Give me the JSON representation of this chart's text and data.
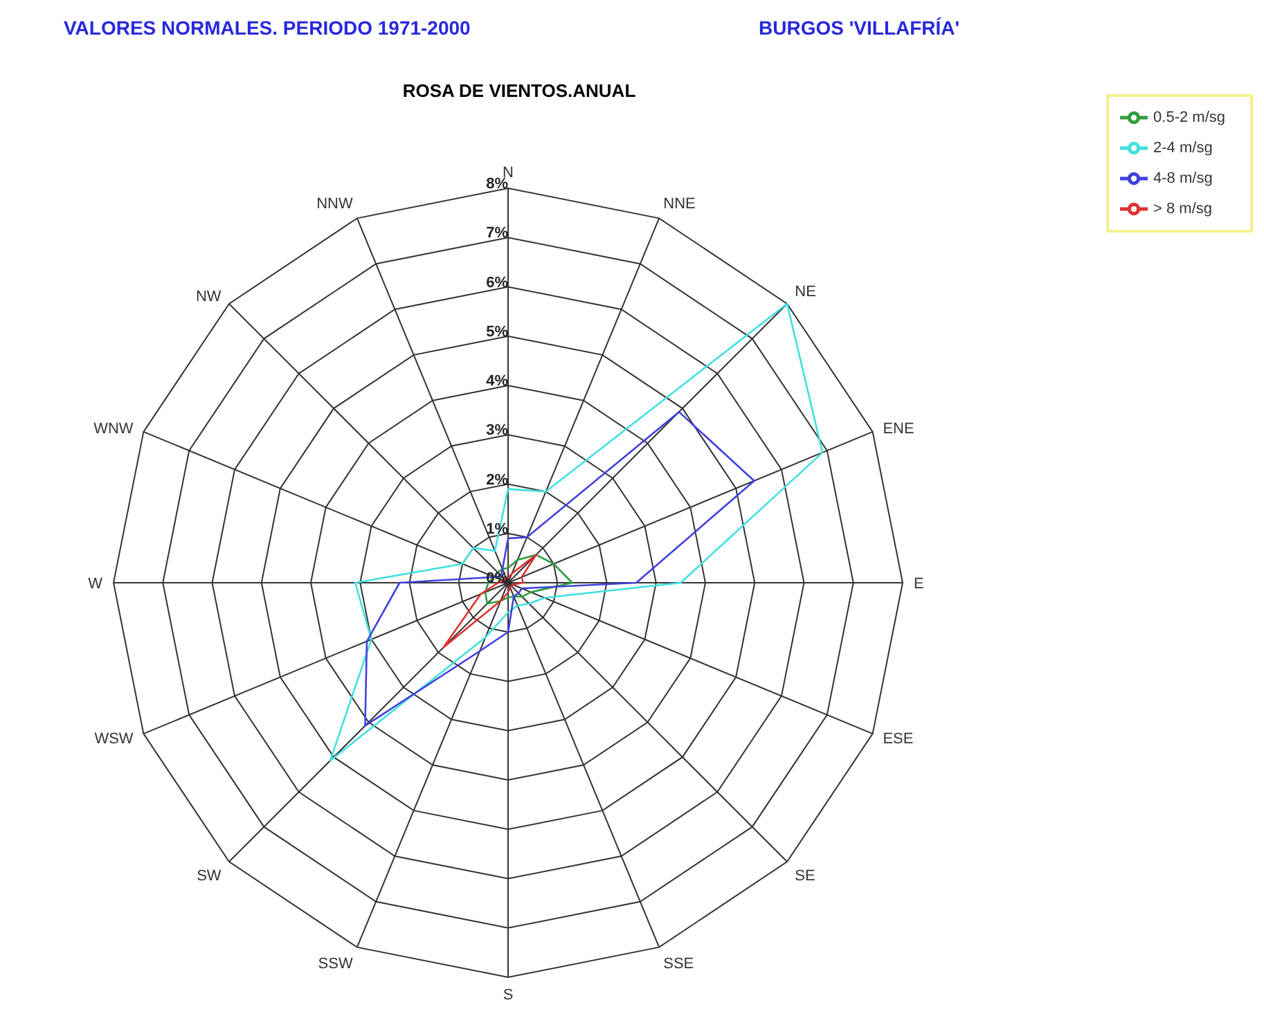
{
  "chart_data": {
    "type": "radar",
    "title": "ROSA DE VIENTOS.ANUAL",
    "annotations": [
      "VALORES NORMALES. PERIODO 1971-2000",
      "BURGOS 'VILLAFRÍA'"
    ],
    "categories": [
      "N",
      "NNE",
      "NE",
      "ENE",
      "E",
      "ESE",
      "SE",
      "SSE",
      "S",
      "SSW",
      "SW",
      "WSW",
      "W",
      "WNW",
      "NW",
      "NNW"
    ],
    "series": [
      {
        "name": "0.5-2 m/sg",
        "color": "#2e9e3e",
        "values": [
          0.3,
          0.5,
          0.8,
          1.0,
          1.3,
          0.5,
          0.4,
          0.3,
          0.3,
          0.4,
          0.6,
          0.5,
          0.4,
          0.3,
          0.3,
          0.3
        ]
      },
      {
        "name": "2-4 m/sg",
        "color": "#40e0e0",
        "values": [
          1.9,
          2.0,
          8.0,
          6.9,
          3.5,
          0.8,
          0.6,
          0.5,
          0.6,
          1.2,
          5.1,
          3.0,
          3.1,
          1.0,
          1.0,
          0.7
        ]
      },
      {
        "name": "4-8 m/sg",
        "color": "#4040e0",
        "values": [
          0.9,
          1.0,
          4.9,
          5.4,
          2.6,
          0.3,
          0.3,
          0.3,
          1.0,
          1.5,
          4.1,
          3.1,
          2.2,
          0.3,
          0.2,
          0.3
        ]
      },
      {
        "name": "> 8 m/sg",
        "color": "#e03030",
        "values": [
          0.1,
          0.2,
          0.8,
          0.3,
          0.3,
          0.1,
          0.1,
          0.1,
          0.2,
          0.4,
          1.85,
          0.6,
          0.2,
          0.1,
          0.1,
          0.1
        ]
      }
    ],
    "ylim": [
      0,
      8
    ],
    "yticks": [
      {
        "value": 0,
        "label": "0%"
      },
      {
        "value": 1,
        "label": "1%"
      },
      {
        "value": 2,
        "label": "2%"
      },
      {
        "value": 3,
        "label": "3%"
      },
      {
        "value": 4,
        "label": "4%"
      },
      {
        "value": 5,
        "label": "5%"
      },
      {
        "value": 6,
        "label": "6%"
      },
      {
        "value": 7,
        "label": "7%"
      },
      {
        "value": 8,
        "label": "8%"
      }
    ],
    "grid": true,
    "legend": "top right",
    "marker": "none",
    "line_style": "solid"
  }
}
